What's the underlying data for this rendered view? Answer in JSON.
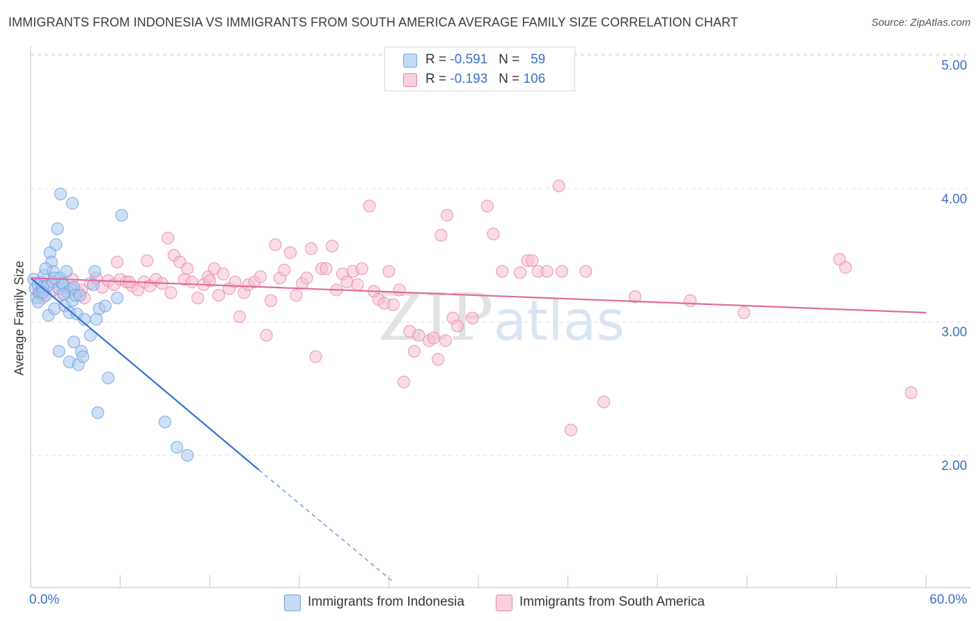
{
  "title": "IMMIGRANTS FROM INDONESIA VS IMMIGRANTS FROM SOUTH AMERICA AVERAGE FAMILY SIZE CORRELATION CHART",
  "source": "Source: ZipAtlas.com",
  "watermark": "ZIPatlas",
  "stats": [
    {
      "r_label": "R =",
      "r_value": "-0.591",
      "n_label": "N =",
      "n_value": "59",
      "color": "#a9c8f0"
    },
    {
      "r_label": "R =",
      "r_value": "-0.193",
      "n_label": "N =",
      "n_value": "106",
      "color": "#f5b8cc"
    }
  ],
  "colors": {
    "blue_point": "#a9c8f0",
    "blue_stroke": "#6f9fdc",
    "blue_line": "#2f6fd6",
    "pink_point": "#f7c0d2",
    "pink_stroke": "#e888a8",
    "pink_line": "#e06a96",
    "axis_text": "#3b6fc4",
    "grid": "#dddddd"
  },
  "chart_data": {
    "type": "scatter",
    "title": "IMMIGRANTS FROM INDONESIA VS IMMIGRANTS FROM SOUTH AMERICA AVERAGE FAMILY SIZE CORRELATION CHART",
    "xlabel": "",
    "ylabel": "Average Family Size",
    "xlim": [
      0,
      60
    ],
    "ylim": [
      1.0,
      5.15
    ],
    "x_tick_labels": [
      "0.0%",
      "60.0%"
    ],
    "y_ticks": [
      2.0,
      3.0,
      4.0,
      5.0
    ],
    "y_tick_labels": [
      "2.00",
      "3.00",
      "4.00",
      "5.00"
    ],
    "grid": true,
    "legend_position": "bottom",
    "series": [
      {
        "name": "Immigrants from Indonesia",
        "color": "#a9c8f0",
        "trend": {
          "x": [
            0,
            15.3
          ],
          "y": [
            3.33,
            1.89
          ],
          "dashed_to": [
            24.2,
            1.06
          ]
        },
        "points": [
          [
            0.2,
            3.32
          ],
          [
            0.3,
            3.25
          ],
          [
            0.4,
            3.18
          ],
          [
            0.5,
            3.28
          ],
          [
            0.6,
            3.22
          ],
          [
            0.7,
            3.3
          ],
          [
            0.8,
            3.26
          ],
          [
            0.9,
            3.35
          ],
          [
            1.0,
            3.2
          ],
          [
            1.1,
            3.27
          ],
          [
            0.5,
            3.15
          ],
          [
            1.2,
            3.05
          ],
          [
            1.3,
            3.52
          ],
          [
            1.4,
            3.45
          ],
          [
            1.5,
            3.38
          ],
          [
            1.6,
            3.1
          ],
          [
            1.7,
            3.58
          ],
          [
            1.8,
            3.7
          ],
          [
            1.5,
            3.3
          ],
          [
            1.9,
            3.25
          ],
          [
            2.0,
            3.33
          ],
          [
            2.1,
            3.29
          ],
          [
            2.2,
            3.28
          ],
          [
            2.3,
            3.12
          ],
          [
            2.4,
            3.38
          ],
          [
            2.5,
            3.22
          ],
          [
            2.6,
            3.07
          ],
          [
            2.7,
            3.25
          ],
          [
            2.8,
            3.16
          ],
          [
            2.9,
            3.26
          ],
          [
            2.0,
            3.96
          ],
          [
            2.8,
            3.89
          ],
          [
            3.0,
            3.2
          ],
          [
            3.1,
            3.06
          ],
          [
            1.9,
            2.78
          ],
          [
            2.6,
            2.7
          ],
          [
            2.9,
            2.85
          ],
          [
            3.2,
            2.68
          ],
          [
            3.4,
            2.78
          ],
          [
            3.5,
            2.74
          ],
          [
            3.6,
            3.02
          ],
          [
            4.0,
            2.9
          ],
          [
            4.2,
            3.28
          ],
          [
            4.3,
            3.38
          ],
          [
            4.6,
            3.1
          ],
          [
            4.5,
            2.32
          ],
          [
            5.0,
            3.12
          ],
          [
            5.2,
            2.58
          ],
          [
            5.8,
            3.18
          ],
          [
            6.1,
            3.8
          ],
          [
            4.4,
            3.02
          ],
          [
            9.0,
            2.25
          ],
          [
            9.8,
            2.06
          ],
          [
            10.5,
            2.0
          ],
          [
            1.0,
            3.4
          ],
          [
            0.8,
            3.22
          ],
          [
            1.6,
            3.33
          ],
          [
            2.2,
            3.21
          ],
          [
            3.3,
            3.2
          ]
        ]
      },
      {
        "name": "Immigrants from South America",
        "color": "#f7c0d2",
        "trend": {
          "x": [
            0,
            60
          ],
          "y": [
            3.33,
            3.07
          ]
        },
        "points": [
          [
            0.5,
            3.22
          ],
          [
            0.8,
            3.18
          ],
          [
            1.2,
            3.28
          ],
          [
            1.6,
            3.24
          ],
          [
            2.0,
            3.2
          ],
          [
            2.4,
            3.26
          ],
          [
            2.8,
            3.32
          ],
          [
            3.2,
            3.22
          ],
          [
            3.6,
            3.18
          ],
          [
            4.0,
            3.29
          ],
          [
            4.4,
            3.33
          ],
          [
            4.8,
            3.26
          ],
          [
            5.2,
            3.31
          ],
          [
            5.6,
            3.28
          ],
          [
            5.8,
            3.45
          ],
          [
            6.0,
            3.32
          ],
          [
            6.4,
            3.3
          ],
          [
            6.8,
            3.27
          ],
          [
            7.2,
            3.24
          ],
          [
            7.6,
            3.3
          ],
          [
            7.8,
            3.46
          ],
          [
            8.0,
            3.27
          ],
          [
            8.4,
            3.32
          ],
          [
            8.8,
            3.29
          ],
          [
            9.2,
            3.63
          ],
          [
            9.4,
            3.22
          ],
          [
            9.6,
            3.5
          ],
          [
            10.0,
            3.45
          ],
          [
            10.3,
            3.32
          ],
          [
            10.5,
            3.4
          ],
          [
            10.8,
            3.3
          ],
          [
            11.2,
            3.18
          ],
          [
            11.6,
            3.28
          ],
          [
            11.9,
            3.34
          ],
          [
            12.3,
            3.4
          ],
          [
            12.6,
            3.2
          ],
          [
            12.9,
            3.36
          ],
          [
            13.3,
            3.25
          ],
          [
            13.7,
            3.3
          ],
          [
            14.0,
            3.04
          ],
          [
            14.3,
            3.22
          ],
          [
            14.6,
            3.28
          ],
          [
            15.0,
            3.3
          ],
          [
            15.4,
            3.34
          ],
          [
            15.8,
            2.9
          ],
          [
            16.1,
            3.16
          ],
          [
            16.4,
            3.58
          ],
          [
            16.7,
            3.33
          ],
          [
            17.0,
            3.39
          ],
          [
            17.4,
            3.52
          ],
          [
            17.8,
            3.2
          ],
          [
            18.2,
            3.29
          ],
          [
            18.5,
            3.33
          ],
          [
            18.8,
            3.55
          ],
          [
            19.1,
            2.74
          ],
          [
            19.5,
            3.4
          ],
          [
            19.8,
            3.4
          ],
          [
            20.2,
            3.57
          ],
          [
            20.5,
            3.24
          ],
          [
            20.9,
            3.36
          ],
          [
            21.2,
            3.3
          ],
          [
            21.6,
            3.38
          ],
          [
            21.9,
            3.28
          ],
          [
            22.2,
            3.4
          ],
          [
            22.7,
            3.87
          ],
          [
            23.0,
            3.23
          ],
          [
            23.3,
            3.17
          ],
          [
            23.7,
            3.14
          ],
          [
            24.0,
            3.38
          ],
          [
            24.3,
            3.13
          ],
          [
            24.7,
            3.24
          ],
          [
            25.0,
            2.55
          ],
          [
            25.4,
            2.93
          ],
          [
            25.7,
            2.78
          ],
          [
            26.0,
            2.9
          ],
          [
            26.7,
            2.86
          ],
          [
            27.0,
            2.88
          ],
          [
            27.3,
            2.72
          ],
          [
            27.5,
            3.65
          ],
          [
            27.8,
            2.86
          ],
          [
            27.9,
            3.8
          ],
          [
            28.3,
            3.03
          ],
          [
            28.6,
            2.97
          ],
          [
            29.6,
            3.03
          ],
          [
            30.6,
            3.87
          ],
          [
            31.0,
            3.66
          ],
          [
            31.6,
            3.38
          ],
          [
            32.8,
            3.37
          ],
          [
            33.3,
            3.46
          ],
          [
            33.6,
            3.46
          ],
          [
            34.0,
            3.38
          ],
          [
            34.6,
            3.38
          ],
          [
            35.4,
            4.02
          ],
          [
            35.6,
            3.38
          ],
          [
            36.2,
            2.19
          ],
          [
            37.2,
            3.38
          ],
          [
            38.4,
            2.4
          ],
          [
            40.5,
            3.19
          ],
          [
            44.2,
            3.16
          ],
          [
            47.8,
            3.07
          ],
          [
            54.2,
            3.47
          ],
          [
            54.6,
            3.41
          ],
          [
            59.0,
            2.47
          ],
          [
            3.4,
            3.24
          ],
          [
            6.6,
            3.3
          ],
          [
            12.0,
            3.31
          ]
        ]
      }
    ]
  },
  "legend": [
    {
      "label": "Immigrants from Indonesia",
      "color": "#a9c8f0"
    },
    {
      "label": "Immigrants from South America",
      "color": "#f7c0d2"
    }
  ]
}
